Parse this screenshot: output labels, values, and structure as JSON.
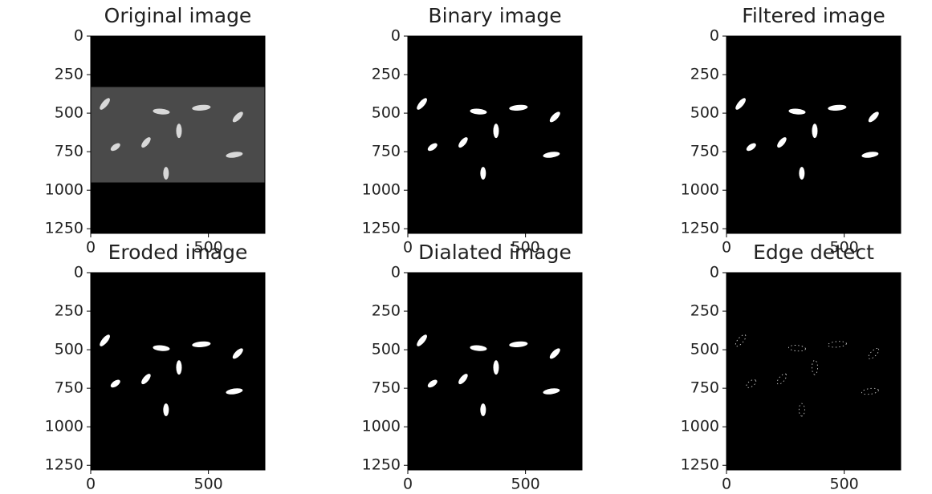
{
  "chart_data": [
    {
      "type": "image",
      "title": "Original image",
      "xlim": [
        0,
        740
      ],
      "ylim": [
        1280,
        0
      ],
      "xticks": [
        0,
        500
      ],
      "yticks": [
        0,
        250,
        500,
        750,
        1000,
        1250
      ]
    },
    {
      "type": "image",
      "title": "Binary image",
      "xlim": [
        0,
        740
      ],
      "ylim": [
        1280,
        0
      ],
      "xticks": [
        0,
        500
      ],
      "yticks": [
        0,
        250,
        500,
        750,
        1000,
        1250
      ]
    },
    {
      "type": "image",
      "title": "Filtered image",
      "xlim": [
        0,
        740
      ],
      "ylim": [
        1280,
        0
      ],
      "xticks": [
        0,
        500
      ],
      "yticks": [
        0,
        250,
        500,
        750,
        1000,
        1250
      ]
    },
    {
      "type": "image",
      "title": "Eroded image",
      "xlim": [
        0,
        740
      ],
      "ylim": [
        1280,
        0
      ],
      "xticks": [
        0,
        500
      ],
      "yticks": [
        0,
        250,
        500,
        750,
        1000,
        1250
      ]
    },
    {
      "type": "image",
      "title": "Dialated image",
      "xlim": [
        0,
        740
      ],
      "ylim": [
        1280,
        0
      ],
      "xticks": [
        0,
        500
      ],
      "yticks": [
        0,
        250,
        500,
        750,
        1000,
        1250
      ]
    },
    {
      "type": "image",
      "title": "Edge detect",
      "xlim": [
        0,
        740
      ],
      "ylim": [
        1280,
        0
      ],
      "xticks": [
        0,
        500
      ],
      "yticks": [
        0,
        250,
        500,
        750,
        1000,
        1250
      ]
    }
  ]
}
